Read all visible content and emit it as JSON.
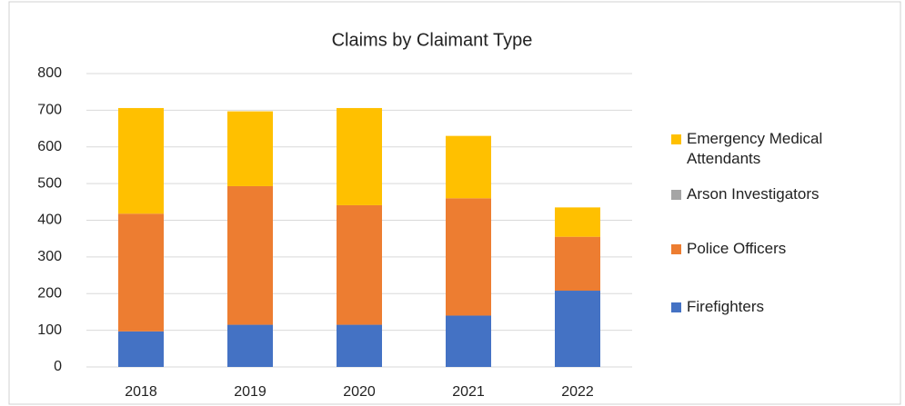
{
  "chart_data": {
    "type": "stacked_bar",
    "title": "Claims by Claimant Type",
    "categories": [
      "2018",
      "2019",
      "2020",
      "2021",
      "2022"
    ],
    "series": [
      {
        "name": "Firefighters",
        "color": "#4472c4",
        "values": [
          97,
          115,
          115,
          140,
          208
        ]
      },
      {
        "name": "Police Officers",
        "color": "#ed7d31",
        "values": [
          321,
          378,
          326,
          320,
          147
        ]
      },
      {
        "name": "Arson Investigators",
        "color": "#a5a5a5",
        "values": [
          0,
          0,
          0,
          0,
          0
        ]
      },
      {
        "name": "Emergency Medical Attendants",
        "color": "#ffc000",
        "values": [
          288,
          204,
          265,
          170,
          80
        ]
      }
    ],
    "ylim": [
      0,
      800
    ],
    "yticks": [
      0,
      100,
      200,
      300,
      400,
      500,
      600,
      700,
      800
    ],
    "grid": true,
    "legend": "right"
  }
}
